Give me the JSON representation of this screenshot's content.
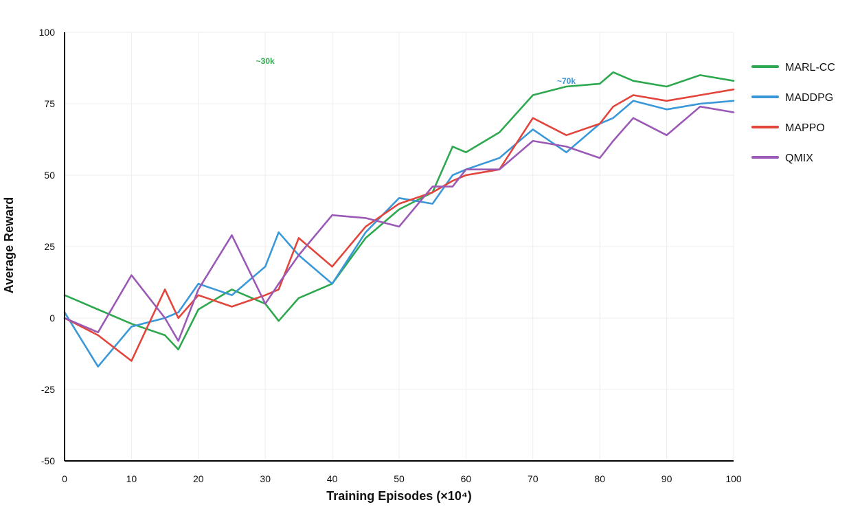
{
  "chart_data": {
    "type": "line",
    "xlabel": "Training Episodes (×10⁴)",
    "ylabel": "Average Reward",
    "xlim": [
      0,
      100
    ],
    "ylim": [
      -50,
      100
    ],
    "xticks": [
      0,
      10,
      20,
      30,
      40,
      50,
      60,
      70,
      80,
      90,
      100
    ],
    "yticks": [
      -50,
      -25,
      0,
      25,
      50,
      75,
      100
    ],
    "grid": true,
    "legend_position": "right",
    "x": [
      0,
      5,
      10,
      15,
      17,
      20,
      25,
      30,
      32,
      35,
      40,
      45,
      50,
      55,
      58,
      60,
      65,
      70,
      75,
      80,
      82,
      85,
      90,
      95,
      100
    ],
    "series": [
      {
        "name": "MARL-CC",
        "color": "#2ea84f",
        "values": [
          8,
          3,
          -2,
          -6,
          -11,
          3,
          10,
          5,
          -1,
          7,
          12,
          28,
          38,
          44,
          60,
          58,
          65,
          78,
          81,
          82,
          86,
          83,
          81,
          85,
          83
        ]
      },
      {
        "name": "MADDPG",
        "color": "#3a98d8",
        "values": [
          2,
          -17,
          -3,
          0,
          2,
          12,
          8,
          18,
          30,
          22,
          12,
          30,
          42,
          40,
          50,
          52,
          56,
          66,
          58,
          68,
          70,
          76,
          73,
          75,
          76
        ]
      },
      {
        "name": "MAPPO",
        "color": "#e2453c",
        "values": [
          0,
          -6,
          -15,
          10,
          0,
          8,
          4,
          8,
          10,
          28,
          18,
          32,
          40,
          44,
          48,
          50,
          52,
          70,
          64,
          68,
          74,
          78,
          76,
          78,
          80
        ]
      },
      {
        "name": "QMIX",
        "color": "#9b59b6",
        "values": [
          0,
          -5,
          15,
          0,
          -8,
          10,
          29,
          5,
          12,
          22,
          36,
          35,
          32,
          46,
          46,
          52,
          52,
          62,
          60,
          56,
          62,
          70,
          64,
          74,
          72
        ]
      }
    ],
    "annotations": [
      {
        "text": "~30k",
        "x": 30,
        "y": 89,
        "color": "#2ea84f"
      },
      {
        "text": "~70k",
        "x": 75,
        "y": 82,
        "color": "#3a98d8"
      }
    ]
  }
}
